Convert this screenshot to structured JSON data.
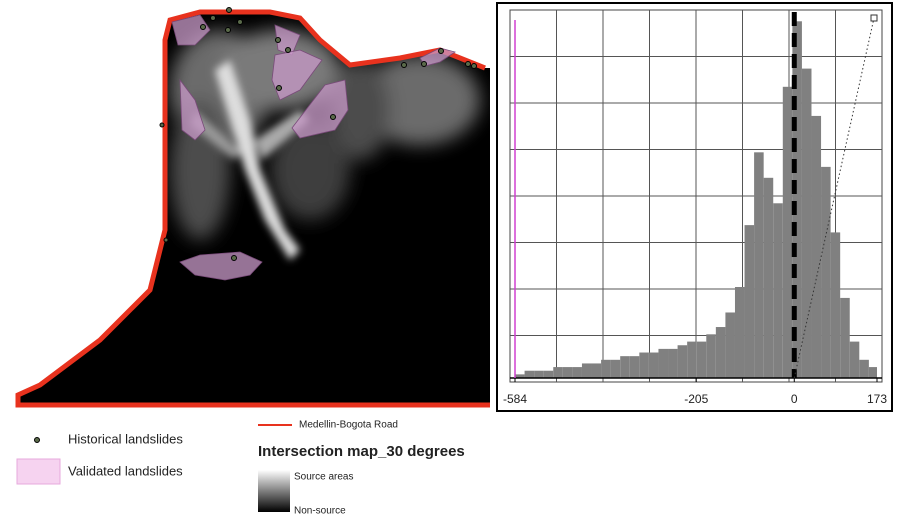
{
  "chart_data": {
    "type": "histogram",
    "bins": [
      -584,
      -564,
      -544,
      -524,
      -504,
      -484,
      -464,
      -444,
      -424,
      -404,
      -384,
      -364,
      -344,
      -324,
      -304,
      -284,
      -264,
      -244,
      -224,
      -204,
      -184,
      -164,
      -144,
      -124,
      -104,
      -84,
      -64,
      -44,
      -24,
      -4,
      16,
      36,
      56,
      76,
      96,
      116,
      136,
      156,
      173
    ],
    "values": [
      1,
      2,
      2,
      2,
      3,
      3,
      3,
      4,
      4,
      5,
      5,
      6,
      6,
      7,
      7,
      8,
      8,
      9,
      10,
      10,
      12,
      14,
      18,
      25,
      42,
      62,
      55,
      48,
      80,
      98,
      85,
      72,
      58,
      40,
      22,
      10,
      5,
      3
    ],
    "color": "#808080",
    "xlim": [
      -584,
      173
    ],
    "xticks": [
      -584,
      -205,
      0,
      173
    ],
    "ylim": [
      0,
      100
    ],
    "grid": true
  },
  "legend": {
    "historical": "Historical landslides",
    "validated": "Validated landslides",
    "road": "Medellin-Bogota Road",
    "map_title": "Intersection map_30 degrees",
    "source": "Source areas",
    "non_source": "Non-source"
  }
}
